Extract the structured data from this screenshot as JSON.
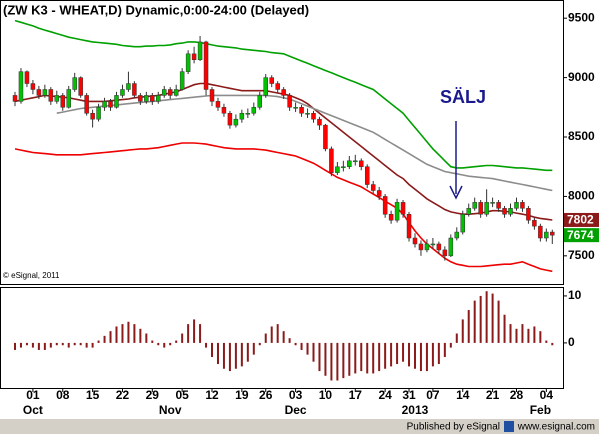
{
  "chart_data": [
    {
      "type": "candlestick",
      "title": "(ZW K3 - WHEAT,D) Dynamic,0:00-24:00 (Delayed)",
      "watermark": "© eSignal, 2011",
      "annotation": "SÄLJ",
      "categories": [
        null,
        null,
        null,
        "01",
        null,
        null,
        null,
        null,
        "08",
        null,
        null,
        null,
        null,
        "15",
        null,
        null,
        null,
        null,
        "22",
        null,
        null,
        null,
        null,
        "29",
        null,
        null,
        null,
        null,
        "05",
        null,
        null,
        null,
        null,
        "12",
        null,
        null,
        null,
        null,
        "19",
        null,
        null,
        null,
        "26",
        null,
        null,
        null,
        null,
        "03",
        null,
        null,
        null,
        null,
        "10",
        null,
        null,
        null,
        null,
        "17",
        null,
        null,
        null,
        null,
        "24",
        null,
        null,
        null,
        "31",
        null,
        null,
        null,
        "07",
        null,
        null,
        null,
        null,
        "14",
        null,
        null,
        null,
        null,
        "21",
        null,
        null,
        null,
        "28",
        null,
        null,
        null,
        null,
        "04",
        null
      ],
      "month_labels": [
        null,
        null,
        null,
        "Oct",
        null,
        null,
        null,
        null,
        null,
        null,
        null,
        null,
        null,
        null,
        null,
        null,
        null,
        null,
        null,
        null,
        null,
        null,
        null,
        null,
        null,
        null,
        "Nov",
        null,
        null,
        null,
        null,
        null,
        null,
        null,
        null,
        null,
        null,
        null,
        null,
        null,
        null,
        null,
        null,
        null,
        null,
        null,
        null,
        "Dec",
        null,
        null,
        null,
        null,
        null,
        null,
        null,
        null,
        null,
        null,
        null,
        null,
        null,
        null,
        null,
        null,
        null,
        null,
        null,
        "2013",
        null,
        null,
        null,
        null,
        null,
        null,
        null,
        null,
        null,
        null,
        null,
        null,
        null,
        null,
        null,
        null,
        null,
        null,
        null,
        null,
        "Feb",
        null,
        null
      ],
      "open": [
        8850,
        8800,
        9050,
        8950,
        8900,
        8850,
        8900,
        8800,
        8850,
        8750,
        8900,
        9000,
        8850,
        8700,
        8650,
        8750,
        8800,
        8750,
        8850,
        8900,
        8950,
        8850,
        8800,
        8850,
        8800,
        8850,
        8900,
        8850,
        8900,
        9050,
        9200,
        9150,
        9300,
        8900,
        8800,
        8750,
        8700,
        8600,
        8650,
        8700,
        8700,
        8750,
        8850,
        9000,
        8950,
        8900,
        8850,
        8750,
        8750,
        8700,
        8700,
        8650,
        8600,
        8400,
        8200,
        8250,
        8250,
        8300,
        8300,
        8250,
        8100,
        8050,
        8000,
        7850,
        7800,
        7950,
        7850,
        7650,
        7600,
        7550,
        7600,
        7600,
        7550,
        7500,
        7650,
        7700,
        7850,
        7900,
        7950,
        7850,
        7950,
        7950,
        7900,
        7850,
        7900,
        7950,
        7900,
        7800,
        7750,
        7650,
        7700
      ],
      "high": [
        8880,
        9080,
        9060,
        8980,
        8930,
        8940,
        8920,
        8890,
        8870,
        8930,
        9040,
        9010,
        8870,
        8730,
        8780,
        8830,
        8820,
        8880,
        8940,
        9050,
        8970,
        8870,
        8880,
        8870,
        8880,
        8930,
        8920,
        8940,
        9080,
        9230,
        9260,
        9350,
        9310,
        8920,
        8830,
        8780,
        8720,
        8690,
        8730,
        8740,
        8790,
        8880,
        9030,
        9020,
        8970,
        8920,
        8870,
        8790,
        8770,
        8740,
        8720,
        8670,
        8610,
        8420,
        8290,
        8300,
        8340,
        8350,
        8320,
        8270,
        8130,
        8080,
        8020,
        7880,
        7980,
        7970,
        7870,
        7690,
        7630,
        7640,
        7650,
        7620,
        7580,
        7680,
        7740,
        7880,
        7940,
        7990,
        7970,
        8060,
        7990,
        7970,
        7920,
        7940,
        7990,
        7970,
        7920,
        7820,
        7770,
        7730,
        7720
      ],
      "low": [
        8760,
        8780,
        8920,
        8860,
        8820,
        8830,
        8770,
        8780,
        8720,
        8740,
        8880,
        8830,
        8680,
        8580,
        8630,
        8720,
        8720,
        8740,
        8830,
        8880,
        8830,
        8770,
        8780,
        8770,
        8780,
        8830,
        8820,
        8840,
        8890,
        9030,
        9120,
        9140,
        8850,
        8760,
        8720,
        8670,
        8570,
        8580,
        8620,
        8660,
        8680,
        8730,
        8830,
        8920,
        8870,
        8820,
        8720,
        8710,
        8670,
        8660,
        8620,
        8560,
        8380,
        8170,
        8180,
        8210,
        8230,
        8260,
        8220,
        8070,
        8020,
        7970,
        7820,
        7770,
        7780,
        7820,
        7620,
        7570,
        7500,
        7530,
        7560,
        7520,
        7460,
        7490,
        7630,
        7680,
        7830,
        7880,
        7820,
        7830,
        7910,
        7870,
        7820,
        7830,
        7880,
        7870,
        7770,
        7720,
        7620,
        7620,
        7600
      ],
      "close": [
        8800,
        9050,
        8950,
        8900,
        8850,
        8900,
        8800,
        8850,
        8750,
        8900,
        9000,
        8850,
        8700,
        8650,
        8750,
        8800,
        8750,
        8850,
        8900,
        8950,
        8850,
        8800,
        8850,
        8800,
        8850,
        8900,
        8850,
        8900,
        9050,
        9200,
        9150,
        9300,
        8900,
        8800,
        8750,
        8700,
        8600,
        8650,
        8700,
        8700,
        8750,
        8850,
        9000,
        8950,
        8900,
        8850,
        8750,
        8750,
        8700,
        8700,
        8650,
        8600,
        8400,
        8200,
        8250,
        8250,
        8300,
        8300,
        8250,
        8100,
        8050,
        8000,
        7850,
        7800,
        7950,
        7850,
        7650,
        7600,
        7550,
        7600,
        7600,
        7550,
        7500,
        7650,
        7700,
        7850,
        7900,
        7950,
        7850,
        7950,
        7950,
        7900,
        7850,
        7900,
        7950,
        7900,
        7800,
        7750,
        7650,
        7700,
        7674
      ],
      "up_color": "#00c000",
      "down_color": "#ff0000",
      "price_label_color": "#00a000",
      "overlays": [
        {
          "color": "#8b1a1a",
          "values": [
            8800,
            8810,
            8820,
            8830,
            8840,
            8850,
            8845,
            8840,
            8835,
            8830,
            8820,
            8810,
            8800,
            8800,
            8800,
            8800,
            8805,
            8810,
            8815,
            8820,
            8830,
            8835,
            8840,
            8845,
            8850,
            8860,
            8870,
            8880,
            8900,
            8920,
            8940,
            8950,
            8950,
            8940,
            8930,
            8920,
            8910,
            8900,
            8890,
            8890,
            8890,
            8890,
            8890,
            8880,
            8870,
            8860,
            8850,
            8830,
            8810,
            8780,
            8740,
            8700,
            8660,
            8620,
            8580,
            8540,
            8500,
            8460,
            8420,
            8380,
            8340,
            8300,
            8260,
            8220,
            8180,
            8150,
            8100,
            8060,
            8020,
            7980,
            7950,
            7920,
            7890,
            7870,
            7860,
            7850,
            7850,
            7855,
            7860,
            7870,
            7880,
            7880,
            7875,
            7870,
            7860,
            7850,
            7840,
            7825,
            7815,
            7808,
            7802
          ]
        },
        {
          "color": "#8c8c8c",
          "values": [
            null,
            null,
            null,
            null,
            null,
            null,
            null,
            8700,
            8710,
            8720,
            8730,
            8740,
            8745,
            8750,
            8755,
            8760,
            8765,
            8770,
            8775,
            8780,
            8785,
            8790,
            8795,
            8800,
            8805,
            8810,
            8815,
            8820,
            8825,
            8830,
            8835,
            8840,
            8845,
            8850,
            8850,
            8850,
            8850,
            8850,
            8850,
            8850,
            8850,
            8850,
            8850,
            8845,
            8840,
            8830,
            8820,
            8800,
            8780,
            8760,
            8740,
            8720,
            8700,
            8680,
            8660,
            8640,
            8620,
            8600,
            8580,
            8560,
            8540,
            8510,
            8480,
            8450,
            8420,
            8390,
            8360,
            8330,
            8300,
            8270,
            8250,
            8230,
            8210,
            8200,
            8190,
            8180,
            8170,
            8165,
            8160,
            8155,
            8150,
            8140,
            8130,
            8120,
            8110,
            8100,
            8090,
            8080,
            8070,
            8060,
            8050
          ]
        },
        {
          "color": "#00a000",
          "values": [
            9480,
            9465,
            9450,
            9435,
            9415,
            9400,
            9385,
            9370,
            9355,
            9340,
            9330,
            9320,
            9310,
            9300,
            9295,
            9290,
            9285,
            9280,
            9270,
            9265,
            9260,
            9260,
            9265,
            9265,
            9270,
            9270,
            9275,
            9285,
            9290,
            9300,
            9300,
            9295,
            9285,
            9275,
            9265,
            9260,
            9255,
            9250,
            9240,
            9235,
            9230,
            9225,
            9220,
            9210,
            9205,
            9200,
            9180,
            9160,
            9140,
            9120,
            9100,
            9080,
            9060,
            9040,
            9020,
            9000,
            8980,
            8960,
            8940,
            8920,
            8900,
            8860,
            8820,
            8780,
            8740,
            8700,
            8640,
            8580,
            8520,
            8460,
            8400,
            8350,
            8300,
            8250,
            8240,
            8240,
            8245,
            8250,
            8255,
            8260,
            8260,
            8255,
            8250,
            8245,
            8240,
            8240,
            8235,
            8230,
            8225,
            8220,
            8220
          ]
        },
        {
          "color": "#ee0000",
          "values": [
            8400,
            8390,
            8380,
            8370,
            8365,
            8360,
            8355,
            8350,
            8350,
            8350,
            8350,
            8350,
            8355,
            8360,
            8365,
            8370,
            8375,
            8380,
            8385,
            8390,
            8395,
            8400,
            8400,
            8405,
            8410,
            8420,
            8430,
            8440,
            8450,
            8450,
            8450,
            8445,
            8440,
            8430,
            8420,
            8410,
            8405,
            8400,
            8400,
            8400,
            8400,
            8395,
            8390,
            8380,
            8370,
            8360,
            8350,
            8340,
            8320,
            8300,
            8280,
            8250,
            8220,
            8190,
            8160,
            8140,
            8120,
            8100,
            8080,
            8050,
            8020,
            7990,
            7960,
            7930,
            7900,
            7850,
            7780,
            7710,
            7650,
            7600,
            7560,
            7520,
            7480,
            7450,
            7430,
            7420,
            7410,
            7410,
            7410,
            7415,
            7420,
            7425,
            7430,
            7430,
            7440,
            7450,
            7430,
            7410,
            7390,
            7380,
            7370
          ]
        }
      ],
      "ylim": [
        7263,
        9653
      ],
      "yticks": [
        7500,
        8000,
        8500,
        9000,
        9500
      ]
    },
    {
      "type": "bar",
      "color": "#8b1a1a",
      "values": [
        -1.5,
        -1,
        -0.5,
        -1,
        -1.5,
        -1.5,
        -1,
        -0.5,
        -0.5,
        -1,
        -0.5,
        -0.5,
        -1,
        -1,
        0.5,
        1.5,
        2.5,
        3.5,
        4,
        4.5,
        4,
        3,
        2,
        0.5,
        -0.5,
        -1,
        -0.5,
        0.5,
        2,
        4,
        5,
        4,
        -1,
        -3,
        -4.5,
        -5.5,
        -6,
        -5.5,
        -5,
        -4,
        -2.5,
        -0.5,
        2,
        3.5,
        4,
        2.5,
        1,
        -0.5,
        -1.5,
        -2.5,
        -4,
        -6,
        -7,
        -8,
        -8,
        -7.5,
        -7,
        -6.5,
        -6,
        -6.5,
        -6.5,
        -6,
        -5.5,
        -5,
        -4.5,
        -4,
        -5,
        -5.5,
        -6,
        -6,
        -5,
        -4.5,
        -3,
        -1,
        2,
        5,
        7,
        9,
        10,
        11,
        10.5,
        9,
        6,
        4,
        3,
        4,
        3,
        3.5,
        2.5,
        0.5,
        -0.5
      ],
      "ylim": [
        -9.6,
        11.9
      ],
      "yticks": [
        0,
        10
      ]
    }
  ],
  "footer": {
    "publisher": "Published by eSignal",
    "site": "www.esignal.com"
  }
}
